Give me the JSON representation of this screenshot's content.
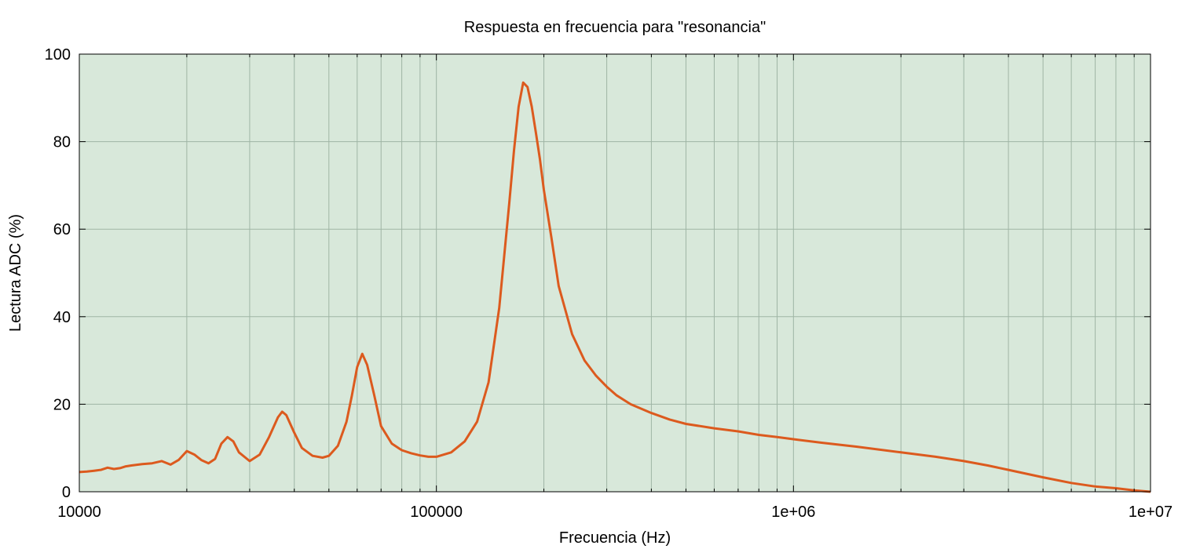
{
  "chart_data": {
    "type": "line",
    "title": "Respuesta en frecuencia para \"resonancia\"",
    "xlabel": "Frecuencia (Hz)",
    "ylabel": "Lectura ADC (%)",
    "x_scale": "log",
    "xlim": [
      10000,
      10000000
    ],
    "ylim": [
      0,
      100
    ],
    "x_ticks": [
      {
        "value": 10000,
        "label": "10000"
      },
      {
        "value": 100000,
        "label": "100000"
      },
      {
        "value": 1000000,
        "label": "1e+06"
      },
      {
        "value": 10000000,
        "label": "1e+07"
      }
    ],
    "y_ticks": [
      {
        "value": 0,
        "label": "0"
      },
      {
        "value": 20,
        "label": "20"
      },
      {
        "value": 40,
        "label": "40"
      },
      {
        "value": 60,
        "label": "60"
      },
      {
        "value": 80,
        "label": "80"
      },
      {
        "value": 100,
        "label": "100"
      }
    ],
    "grid": true,
    "legend": "none",
    "colors": {
      "plot_background": "#d8e8da",
      "grid": "#9fb5a5",
      "line": "#dc5a1e",
      "axis": "#000000"
    },
    "series": [
      {
        "x": [
          10000,
          10500,
          11000,
          11500,
          12000,
          12500,
          13000,
          13500,
          14000,
          15000,
          16000,
          17000,
          18000,
          19000,
          20000,
          21000,
          22000,
          23000,
          24000,
          25000,
          26000,
          27000,
          28000,
          30000,
          32000,
          34000,
          36000,
          37000,
          38000,
          40000,
          42000,
          45000,
          48000,
          50000,
          53000,
          56000,
          58000,
          60000,
          62000,
          64000,
          67000,
          70000,
          75000,
          80000,
          85000,
          90000,
          95000,
          100000,
          105000,
          110000,
          120000,
          130000,
          140000,
          150000,
          160000,
          165000,
          170000,
          175000,
          180000,
          185000,
          190000,
          195000,
          200000,
          210000,
          220000,
          240000,
          260000,
          280000,
          300000,
          320000,
          350000,
          400000,
          450000,
          500000,
          600000,
          700000,
          800000,
          900000,
          1000000,
          1200000,
          1500000,
          2000000,
          2500000,
          3000000,
          3500000,
          4000000,
          5000000,
          6000000,
          7000000,
          8000000,
          9000000,
          10000000
        ],
        "y": [
          4.5,
          4.6,
          4.8,
          5.0,
          5.5,
          5.2,
          5.4,
          5.8,
          6.0,
          6.3,
          6.5,
          7.0,
          6.2,
          7.3,
          9.3,
          8.5,
          7.2,
          6.5,
          7.5,
          11.0,
          12.5,
          11.5,
          9.0,
          7.0,
          8.5,
          12.5,
          17.0,
          18.3,
          17.5,
          13.5,
          10.0,
          8.2,
          7.8,
          8.2,
          10.5,
          16.0,
          22.0,
          28.5,
          31.5,
          29.0,
          22.0,
          15.0,
          11.0,
          9.5,
          8.8,
          8.3,
          8.0,
          8.0,
          8.5,
          9.0,
          11.5,
          16.0,
          25.0,
          42.0,
          66.0,
          78.0,
          88.0,
          93.5,
          92.5,
          88.0,
          82.0,
          76.0,
          69.0,
          58.0,
          47.0,
          36.0,
          30.0,
          26.5,
          24.0,
          22.0,
          20.0,
          18.0,
          16.5,
          15.5,
          14.5,
          13.8,
          13.0,
          12.5,
          12.0,
          11.2,
          10.3,
          9.0,
          8.0,
          7.0,
          6.0,
          5.0,
          3.3,
          2.0,
          1.2,
          0.8,
          0.3,
          0.0
        ]
      }
    ]
  }
}
